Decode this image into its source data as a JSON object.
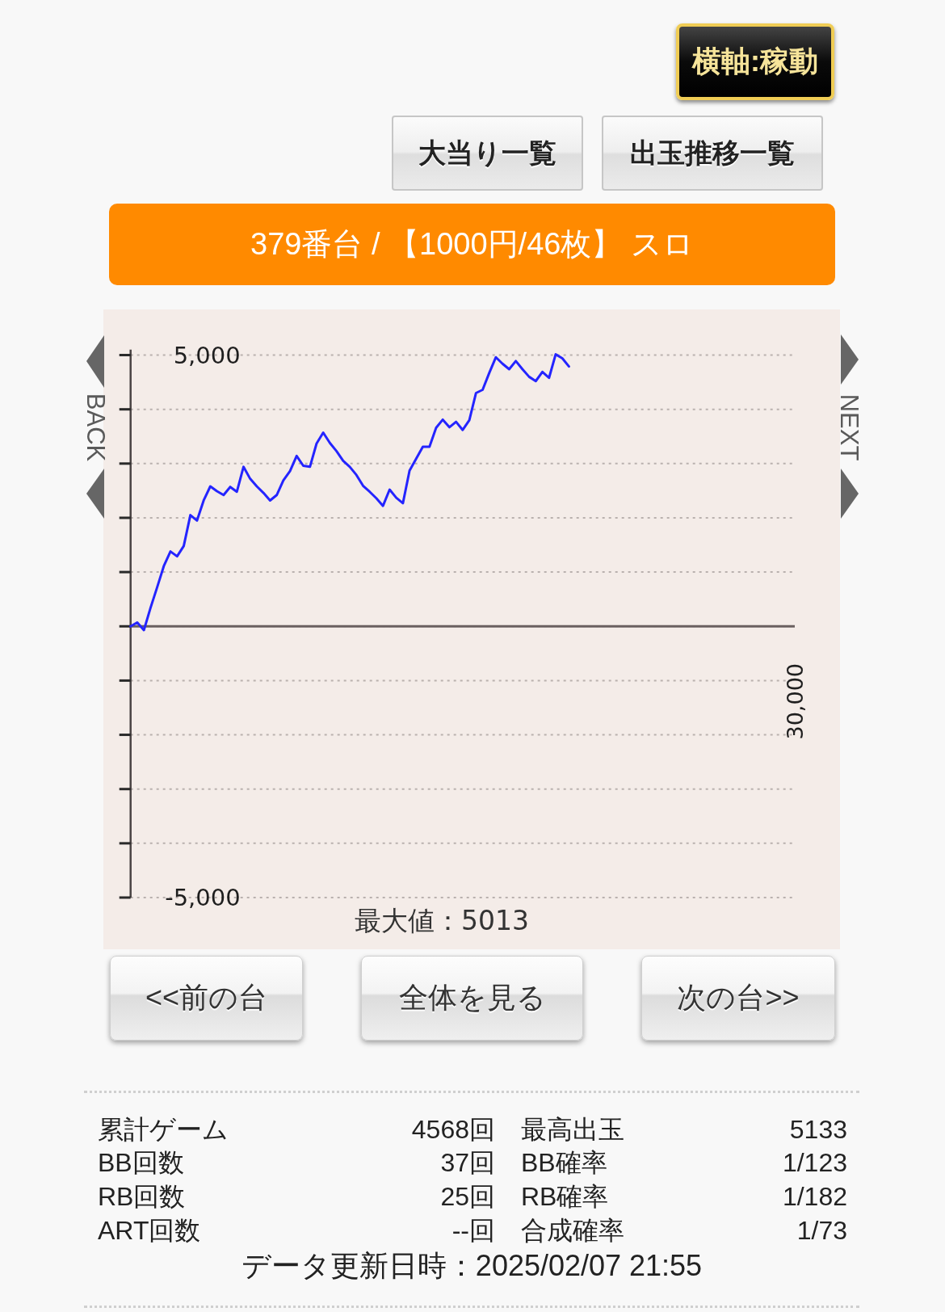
{
  "chart_data": {
    "type": "line",
    "title": "379番台 / 【1000円/46枚】 スロ",
    "categories": [
      null,
      null,
      null,
      null,
      null,
      null,
      null,
      null,
      null,
      null,
      null,
      null,
      null,
      null,
      null,
      null,
      null,
      null,
      null,
      null,
      null,
      null,
      null,
      null,
      null,
      null,
      null,
      null,
      null,
      null,
      null,
      null,
      null,
      null,
      null,
      null,
      null,
      null,
      null,
      null,
      null,
      null,
      null,
      null,
      null,
      null,
      null,
      null,
      null,
      null,
      null,
      null,
      null,
      null,
      null,
      null,
      null,
      null,
      null,
      null,
      null,
      null,
      null,
      null,
      null,
      null,
      null,
      null,
      null,
      null,
      null,
      null,
      null,
      null,
      null,
      null,
      null,
      null,
      null,
      null,
      null,
      null,
      null,
      null,
      null,
      null,
      null,
      null,
      null,
      null,
      null,
      null,
      null,
      null,
      null,
      null,
      null,
      null,
      null,
      null,
      null
    ],
    "values": [
      0,
      70,
      -70,
      340,
      720,
      1110,
      1380,
      1290,
      1480,
      2050,
      1950,
      2320,
      2580,
      2490,
      2420,
      2570,
      2480,
      2940,
      2720,
      2580,
      2460,
      2320,
      2420,
      2690,
      2860,
      3140,
      2960,
      2940,
      3370,
      3570,
      3380,
      3230,
      3050,
      2940,
      2790,
      2590,
      2480,
      2360,
      2220,
      2520,
      2370,
      2270,
      2870,
      3090,
      3310,
      3310,
      3660,
      3810,
      3670,
      3770,
      3620,
      3800,
      4300,
      4360,
      4670,
      4960,
      4840,
      4740,
      4890,
      4740,
      4600,
      4520,
      4690,
      4580,
      5013,
      4940,
      4790,
      null,
      null,
      null,
      null,
      null,
      null,
      null,
      null,
      null,
      null,
      null,
      null,
      null,
      null,
      null,
      null,
      null,
      null,
      null,
      null,
      null,
      null,
      null,
      null,
      null,
      null,
      null,
      null,
      null,
      null,
      null,
      null,
      null,
      null
    ],
    "color": "#2424ff",
    "ylim": [
      -5000,
      5100
    ],
    "yticks": [
      {
        "value": 5000,
        "label": "5,000"
      },
      {
        "value": 4000,
        "label": null
      },
      {
        "value": 3000,
        "label": null
      },
      {
        "value": 2000,
        "label": null
      },
      {
        "value": 1000,
        "label": null
      },
      {
        "value": 0,
        "label": null
      },
      {
        "value": -1000,
        "label": null
      },
      {
        "value": -2000,
        "label": null
      },
      {
        "value": -3000,
        "label": null
      },
      {
        "value": -4000,
        "label": null
      },
      {
        "value": -5000,
        "label": "-5,000"
      }
    ],
    "grid": "y",
    "annotations": [
      "横軸:稼動",
      "大当り一覧",
      "出玉推移一覧",
      "BACK",
      "NEXT",
      "最大値：5013",
      "<<前の台",
      "全体を見る",
      "次の台>>",
      "累計ゲーム",
      "4568回",
      "最高出玉",
      "5133",
      "BB回数",
      "37回",
      "BB確率",
      "1/123",
      "RB回数",
      "25回",
      "RB確率",
      "1/182",
      "ART回数",
      "--回",
      "合成確率",
      "1/73",
      "データ更新日時：2025/02/07 21:55",
      "30,000"
    ]
  }
}
